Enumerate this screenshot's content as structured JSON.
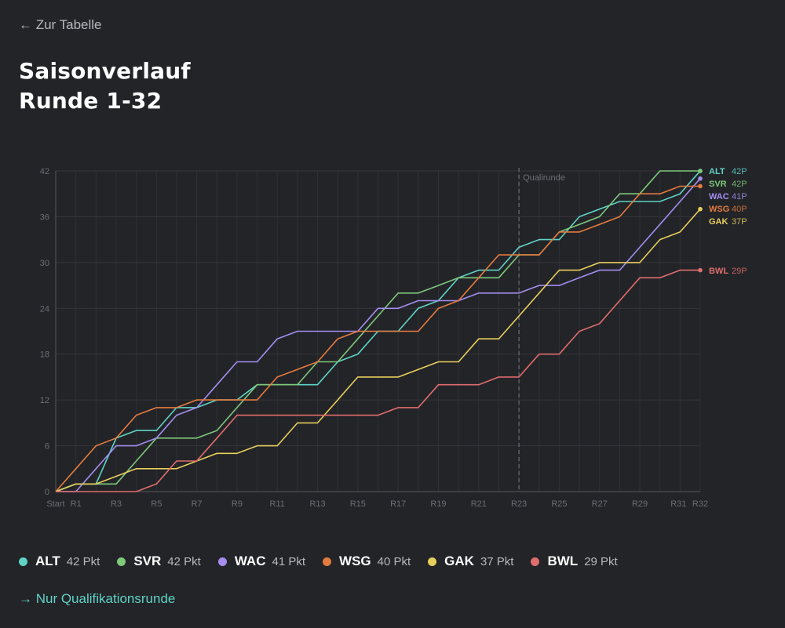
{
  "nav": {
    "back_label": "← Zur Tabelle",
    "qual_label": "→ Nur Qualifikationsrunde"
  },
  "header": {
    "title_line1": "Saisonverlauf",
    "title_line2": "Runde 1-32"
  },
  "chart_data": {
    "type": "line",
    "title": "Saisonverlauf Runde 1-32",
    "xlabel": "",
    "ylabel": "",
    "rounds": 32,
    "x": [
      "Start",
      "R1",
      "R2",
      "R3",
      "R4",
      "R5",
      "R6",
      "R7",
      "R8",
      "R9",
      "R10",
      "R11",
      "R12",
      "R13",
      "R14",
      "R15",
      "R16",
      "R17",
      "R18",
      "R19",
      "R20",
      "R21",
      "R22",
      "R23",
      "R24",
      "R25",
      "R26",
      "R27",
      "R28",
      "R29",
      "R30",
      "R31",
      "R32"
    ],
    "x_tick_labels": [
      "Start",
      "R1",
      "R3",
      "R5",
      "R7",
      "R9",
      "R11",
      "R13",
      "R15",
      "R17",
      "R19",
      "R21",
      "R23",
      "R25",
      "R27",
      "R29",
      "R31",
      "R32"
    ],
    "ylim": [
      0,
      42
    ],
    "y_ticks": [
      0,
      6,
      12,
      18,
      24,
      30,
      36,
      42
    ],
    "grid": true,
    "marker": {
      "round": 23,
      "label": "Qualirunde"
    },
    "series": [
      {
        "name": "ALT",
        "points": 42,
        "color": "#5fd3c6",
        "values": [
          0,
          1,
          1,
          7,
          8,
          8,
          11,
          11,
          12,
          12,
          14,
          14,
          14,
          14,
          17,
          18,
          21,
          21,
          24,
          25,
          28,
          29,
          29,
          32,
          33,
          33,
          36,
          37,
          38,
          38,
          38,
          39,
          42
        ]
      },
      {
        "name": "SVR",
        "points": 42,
        "color": "#7ec97a",
        "values": [
          0,
          1,
          1,
          1,
          4,
          7,
          7,
          7,
          8,
          11,
          14,
          14,
          14,
          17,
          17,
          20,
          23,
          26,
          26,
          27,
          28,
          28,
          28,
          31,
          31,
          34,
          35,
          36,
          39,
          39,
          42,
          42,
          42
        ]
      },
      {
        "name": "WAC",
        "points": 41,
        "color": "#a48ef0",
        "values": [
          0,
          0,
          3,
          6,
          6,
          7,
          10,
          11,
          14,
          17,
          17,
          20,
          21,
          21,
          21,
          21,
          24,
          24,
          25,
          25,
          25,
          26,
          26,
          26,
          27,
          27,
          28,
          29,
          29,
          32,
          35,
          38,
          41
        ]
      },
      {
        "name": "WSG",
        "points": 40,
        "color": "#e47b3e",
        "values": [
          0,
          3,
          6,
          7,
          10,
          11,
          11,
          12,
          12,
          12,
          12,
          15,
          16,
          17,
          20,
          21,
          21,
          21,
          21,
          24,
          25,
          28,
          31,
          31,
          31,
          34,
          34,
          35,
          36,
          39,
          39,
          40,
          40
        ]
      },
      {
        "name": "GAK",
        "points": 37,
        "color": "#e8cf5d",
        "values": [
          0,
          1,
          1,
          2,
          3,
          3,
          3,
          4,
          5,
          5,
          6,
          6,
          9,
          9,
          12,
          15,
          15,
          15,
          16,
          17,
          17,
          20,
          20,
          23,
          26,
          29,
          29,
          30,
          30,
          30,
          33,
          34,
          37
        ]
      },
      {
        "name": "BWL",
        "points": 29,
        "color": "#e06d6d",
        "values": [
          0,
          0,
          0,
          0,
          0,
          1,
          4,
          4,
          7,
          10,
          10,
          10,
          10,
          10,
          10,
          10,
          10,
          11,
          11,
          14,
          14,
          14,
          15,
          15,
          18,
          18,
          21,
          22,
          25,
          28,
          28,
          29,
          29
        ]
      }
    ],
    "end_labels": [
      "42P",
      "42P",
      "41P",
      "40P",
      "37P",
      "29P"
    ]
  },
  "legend": [
    {
      "code": "ALT",
      "pts": "42 Pkt",
      "color": "#5fd3c6"
    },
    {
      "code": "SVR",
      "pts": "42 Pkt",
      "color": "#7ec97a"
    },
    {
      "code": "WAC",
      "pts": "41 Pkt",
      "color": "#a48ef0"
    },
    {
      "code": "WSG",
      "pts": "40 Pkt",
      "color": "#e47b3e"
    },
    {
      "code": "GAK",
      "pts": "37 Pkt",
      "color": "#e8cf5d"
    },
    {
      "code": "BWL",
      "pts": "29 Pkt",
      "color": "#e06d6d"
    }
  ]
}
